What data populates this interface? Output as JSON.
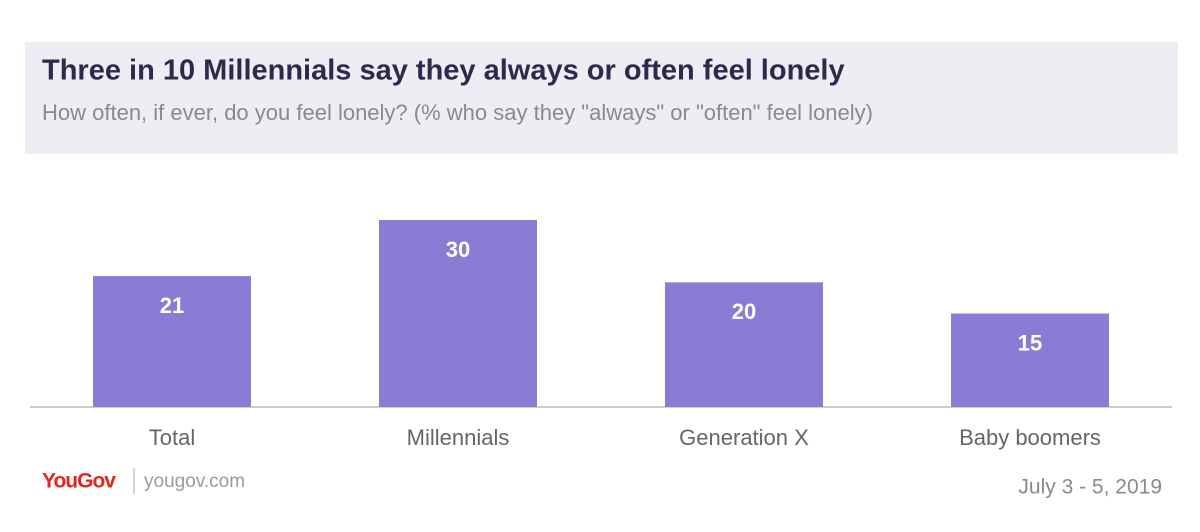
{
  "chart_data": {
    "type": "bar",
    "title": "Three in 10 Millennials say they always or often feel lonely",
    "subtitle": "How often, if ever, do you feel lonely? (% who say they \"always\" or \"often\" feel lonely)",
    "categories": [
      "Total",
      "Millennials",
      "Generation X",
      "Baby boomers"
    ],
    "values": [
      21,
      30,
      20,
      15
    ],
    "color": "#8b7bd4",
    "brand": "YouGov",
    "source": "yougov.com",
    "date": "July 3 - 5, 2019"
  }
}
